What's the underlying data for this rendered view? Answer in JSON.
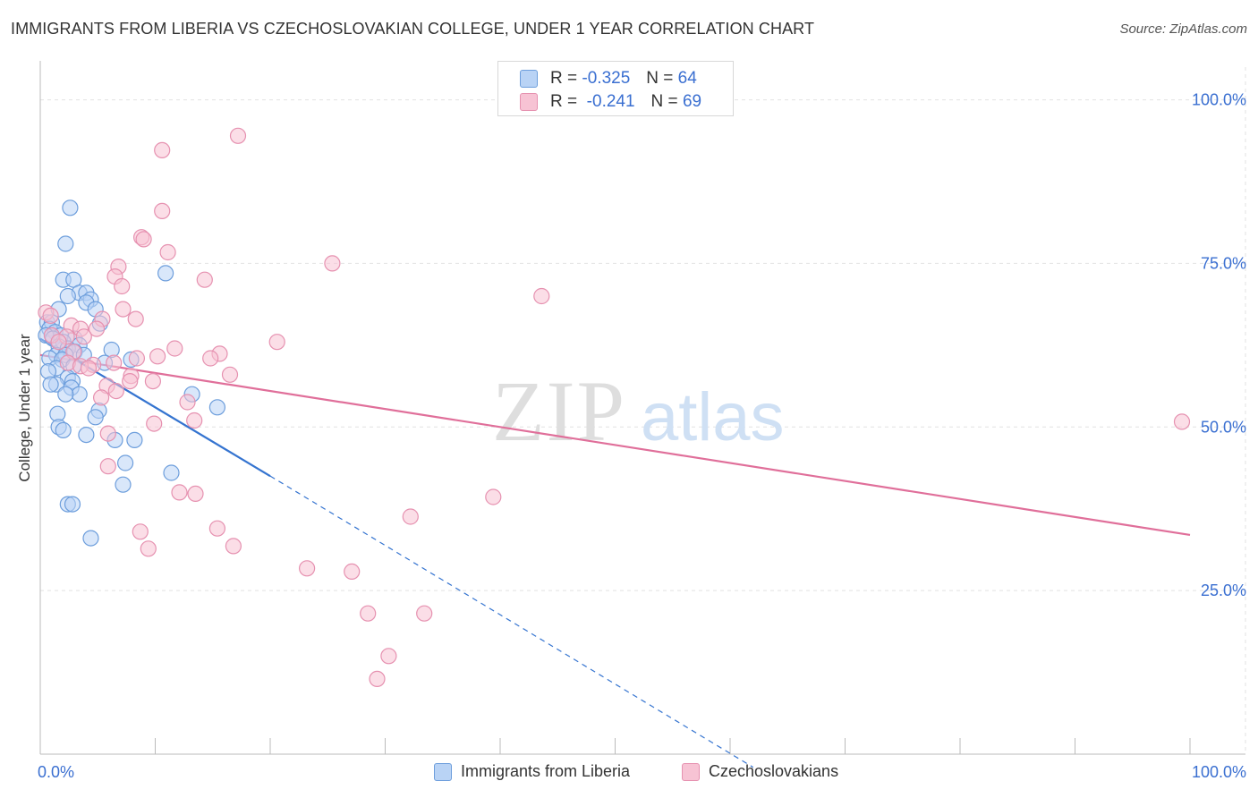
{
  "header": {
    "title": "IMMIGRANTS FROM LIBERIA VS CZECHOSLOVAKIAN COLLEGE, UNDER 1 YEAR CORRELATION CHART",
    "source": "Source: ZipAtlas.com"
  },
  "watermark": {
    "zip": "ZIP",
    "atlas": "atlas"
  },
  "legend": {
    "series1": {
      "r_label": "R =",
      "r_value": "-0.325",
      "n_label": "N =",
      "n_value": "64"
    },
    "series2": {
      "r_label": "R =",
      "r_value": "-0.241",
      "n_label": "N =",
      "n_value": "69"
    }
  },
  "bottom_legend": {
    "series1": "Immigrants from Liberia",
    "series2": "Czechoslovakians"
  },
  "chart_data": {
    "type": "scatter",
    "title": "IMMIGRANTS FROM LIBERIA VS CZECHOSLOVAKIAN COLLEGE, UNDER 1 YEAR CORRELATION CHART",
    "xlabel": "",
    "ylabel": "College, Under 1 year",
    "xlim": [
      0,
      100
    ],
    "ylim": [
      0,
      105
    ],
    "x_tick_labels": [
      {
        "value": 0,
        "label": "0.0%"
      },
      {
        "value": 100,
        "label": "100.0%"
      }
    ],
    "y_tick_labels": [
      {
        "value": 25,
        "label": "25.0%"
      },
      {
        "value": 50,
        "label": "50.0%"
      },
      {
        "value": 75,
        "label": "75.0%"
      },
      {
        "value": 100,
        "label": "100.0%"
      }
    ],
    "grid": true,
    "colors": {
      "series1_fill": "#b9d3f5",
      "series1_edge": "#6d9edc",
      "series1_line": "#3574d0",
      "series2_fill": "#f7c3d4",
      "series2_edge": "#e691b0",
      "series2_line": "#e06f9a",
      "axis_label": "#3a6fd1"
    },
    "series": [
      {
        "name": "Immigrants from Liberia",
        "R": -0.325,
        "N": 64,
        "trend": {
          "x0": 0,
          "y0": 63.5,
          "x1": 20,
          "y1": 42.5,
          "dash_x1": 62,
          "dash_y1": -2
        },
        "points": [
          [
            2.6,
            83.5
          ],
          [
            2.2,
            78.0
          ],
          [
            10.9,
            73.5
          ],
          [
            2.0,
            72.5
          ],
          [
            2.9,
            72.5
          ],
          [
            3.4,
            70.5
          ],
          [
            4.0,
            70.5
          ],
          [
            2.4,
            70.0
          ],
          [
            4.4,
            69.5
          ],
          [
            4.0,
            69.0
          ],
          [
            1.6,
            68.0
          ],
          [
            4.8,
            68.0
          ],
          [
            0.6,
            66.0
          ],
          [
            1.0,
            66.0
          ],
          [
            5.2,
            65.8
          ],
          [
            0.8,
            65.0
          ],
          [
            1.3,
            64.5
          ],
          [
            0.5,
            64.0
          ],
          [
            1.8,
            64.0
          ],
          [
            1.1,
            63.5
          ],
          [
            3.0,
            63.5
          ],
          [
            2.0,
            63.0
          ],
          [
            3.4,
            62.5
          ],
          [
            1.6,
            62.3
          ],
          [
            2.4,
            62.0
          ],
          [
            3.0,
            61.5
          ],
          [
            6.2,
            61.8
          ],
          [
            1.4,
            61.0
          ],
          [
            2.2,
            61.0
          ],
          [
            3.8,
            61.0
          ],
          [
            0.8,
            60.5
          ],
          [
            1.9,
            60.3
          ],
          [
            7.9,
            60.3
          ],
          [
            5.6,
            59.8
          ],
          [
            2.9,
            59.3
          ],
          [
            1.4,
            59.0
          ],
          [
            0.7,
            58.5
          ],
          [
            2.4,
            57.5
          ],
          [
            2.8,
            57.0
          ],
          [
            1.4,
            56.5
          ],
          [
            0.9,
            56.5
          ],
          [
            2.7,
            56.0
          ],
          [
            3.4,
            55.0
          ],
          [
            2.2,
            55.0
          ],
          [
            13.2,
            55.0
          ],
          [
            15.4,
            53.0
          ],
          [
            5.1,
            52.5
          ],
          [
            1.5,
            52.0
          ],
          [
            4.8,
            51.5
          ],
          [
            1.6,
            50.0
          ],
          [
            2.0,
            49.5
          ],
          [
            4.0,
            48.8
          ],
          [
            6.5,
            48.0
          ],
          [
            8.2,
            48.0
          ],
          [
            7.4,
            44.5
          ],
          [
            11.4,
            43.0
          ],
          [
            7.2,
            41.2
          ],
          [
            2.4,
            38.2
          ],
          [
            2.8,
            38.2
          ],
          [
            4.4,
            33.0
          ]
        ]
      },
      {
        "name": "Czechoslovakians",
        "R": -0.241,
        "N": 69,
        "trend": {
          "x0": 0,
          "y0": 61.0,
          "x1": 100,
          "y1": 33.5
        },
        "points": [
          [
            17.2,
            94.5
          ],
          [
            10.6,
            92.3
          ],
          [
            10.6,
            83.0
          ],
          [
            8.8,
            79.0
          ],
          [
            9.0,
            78.7
          ],
          [
            11.1,
            76.7
          ],
          [
            25.4,
            75.0
          ],
          [
            6.8,
            74.5
          ],
          [
            6.5,
            73.0
          ],
          [
            14.3,
            72.5
          ],
          [
            7.1,
            71.5
          ],
          [
            43.6,
            70.0
          ],
          [
            7.2,
            68.0
          ],
          [
            0.5,
            67.5
          ],
          [
            0.9,
            67.0
          ],
          [
            8.3,
            66.5
          ],
          [
            5.4,
            66.5
          ],
          [
            2.7,
            65.5
          ],
          [
            3.5,
            65.0
          ],
          [
            4.9,
            65.0
          ],
          [
            1.0,
            64.0
          ],
          [
            2.3,
            63.8
          ],
          [
            3.8,
            63.8
          ],
          [
            1.6,
            63.0
          ],
          [
            20.6,
            63.0
          ],
          [
            11.7,
            62.0
          ],
          [
            2.9,
            61.5
          ],
          [
            15.6,
            61.2
          ],
          [
            10.2,
            60.8
          ],
          [
            14.8,
            60.5
          ],
          [
            8.4,
            60.5
          ],
          [
            2.4,
            59.8
          ],
          [
            4.6,
            59.5
          ],
          [
            6.4,
            59.8
          ],
          [
            3.5,
            59.3
          ],
          [
            4.2,
            59.0
          ],
          [
            16.5,
            58.0
          ],
          [
            7.9,
            57.8
          ],
          [
            7.8,
            57.0
          ],
          [
            9.8,
            57.0
          ],
          [
            5.8,
            56.3
          ],
          [
            6.6,
            55.5
          ],
          [
            5.3,
            54.5
          ],
          [
            12.8,
            53.8
          ],
          [
            13.4,
            51.0
          ],
          [
            9.9,
            50.5
          ],
          [
            99.3,
            50.8
          ],
          [
            5.9,
            49.0
          ],
          [
            5.9,
            44.0
          ],
          [
            12.1,
            40.0
          ],
          [
            13.5,
            39.8
          ],
          [
            39.4,
            39.3
          ],
          [
            32.2,
            36.3
          ],
          [
            15.4,
            34.5
          ],
          [
            8.7,
            34.0
          ],
          [
            16.8,
            31.8
          ],
          [
            9.4,
            31.4
          ],
          [
            23.2,
            28.4
          ],
          [
            27.1,
            27.9
          ],
          [
            28.5,
            21.5
          ],
          [
            33.4,
            21.5
          ],
          [
            30.3,
            15.0
          ],
          [
            29.3,
            11.5
          ]
        ]
      }
    ]
  }
}
